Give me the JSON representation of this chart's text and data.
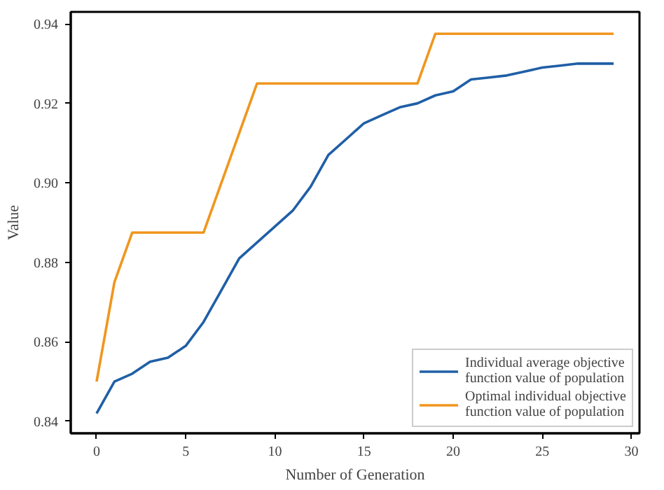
{
  "chart_data": {
    "type": "line",
    "xlabel": "Number of Generation",
    "ylabel": "Value",
    "x": [
      0,
      1,
      2,
      3,
      4,
      5,
      6,
      7,
      8,
      9,
      10,
      11,
      12,
      13,
      14,
      15,
      16,
      17,
      18,
      19,
      20,
      21,
      22,
      23,
      24,
      25,
      26,
      27,
      28,
      29
    ],
    "series": [
      {
        "name": "Individual average objective function value of population",
        "color": "#1f5fa6",
        "values": [
          0.842,
          0.85,
          0.852,
          0.855,
          0.856,
          0.859,
          0.865,
          0.873,
          0.881,
          0.885,
          0.889,
          0.893,
          0.899,
          0.907,
          0.911,
          0.915,
          0.917,
          0.919,
          0.92,
          0.922,
          0.923,
          0.926,
          0.9265,
          0.927,
          0.928,
          0.929,
          0.9295,
          0.93,
          0.93,
          0.93
        ]
      },
      {
        "name": "Optimal individual objective function value of population",
        "color": "#f0961e",
        "values": [
          0.85,
          0.875,
          0.8875,
          0.8875,
          0.8875,
          0.8875,
          0.8875,
          0.9,
          0.9125,
          0.925,
          0.925,
          0.925,
          0.925,
          0.925,
          0.925,
          0.925,
          0.925,
          0.925,
          0.925,
          0.9375,
          0.9375,
          0.9375,
          0.9375,
          0.9375,
          0.9375,
          0.9375,
          0.9375,
          0.9375,
          0.9375,
          0.9375
        ]
      }
    ],
    "xlim": [
      -1.45,
      30.45
    ],
    "ylim": [
      0.837,
      0.943
    ],
    "xticks": [
      0,
      5,
      10,
      15,
      20,
      25,
      30
    ],
    "yticks": [
      {
        "value": 0.84,
        "label": "0.84"
      },
      {
        "value": 0.86,
        "label": "0.86"
      },
      {
        "value": 0.88,
        "label": "0.88"
      },
      {
        "value": 0.9,
        "label": "0.90"
      },
      {
        "value": 0.92,
        "label": "0.92"
      },
      {
        "value": 0.94,
        "label": "0.94"
      }
    ],
    "grid": false,
    "legend": "bottom right",
    "marker": "none",
    "line_style": "solid"
  }
}
